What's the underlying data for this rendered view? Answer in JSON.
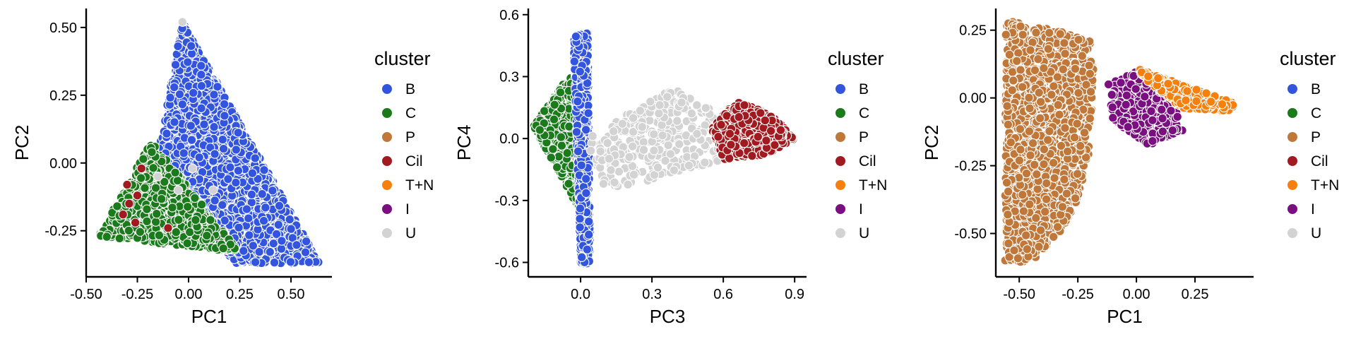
{
  "legend": {
    "title": "cluster",
    "entries": [
      {
        "label": "B",
        "color": "#3355DD"
      },
      {
        "label": "C",
        "color": "#1B7A1B"
      },
      {
        "label": "P",
        "color": "#C0783A"
      },
      {
        "label": "Cil",
        "color": "#A01A1F"
      },
      {
        "label": "T+N",
        "color": "#F5800E"
      },
      {
        "label": "I",
        "color": "#7A0F7F"
      },
      {
        "label": "U",
        "color": "#D3D3D3"
      }
    ]
  },
  "chart_data": [
    {
      "type": "scatter",
      "xlabel": "PC1",
      "ylabel": "PC2",
      "xlim": [
        -0.5,
        0.7
      ],
      "ylim": [
        -0.42,
        0.57
      ],
      "xticks": [
        -0.5,
        -0.25,
        0.0,
        0.25,
        0.5
      ],
      "xtick_labels": [
        "-0.50",
        "-0.25",
        "0.00",
        "0.25",
        "0.50"
      ],
      "yticks": [
        -0.25,
        0.0,
        0.25,
        0.5
      ],
      "ytick_labels": [
        "-0.25",
        "0.00",
        "0.25",
        "0.50"
      ],
      "series": [
        {
          "name": "B",
          "region": [
            [
              -0.03,
              0.52
            ],
            [
              0.64,
              -0.37
            ],
            [
              0.22,
              -0.37
            ],
            [
              -0.15,
              0.03
            ]
          ],
          "n": 2400,
          "count_visible": "dense"
        },
        {
          "name": "C",
          "region": [
            [
              -0.44,
              -0.27
            ],
            [
              -0.18,
              0.08
            ],
            [
              0.25,
              -0.33
            ]
          ],
          "n": 900
        },
        {
          "name": "U",
          "points": [
            [
              -0.03,
              0.52
            ],
            [
              0.02,
              -0.02
            ],
            [
              -0.05,
              -0.1
            ],
            [
              0.12,
              -0.1
            ],
            [
              -0.15,
              -0.05
            ]
          ]
        },
        {
          "name": "Cil",
          "points": [
            [
              -0.32,
              -0.19
            ],
            [
              -0.29,
              -0.15
            ],
            [
              -0.26,
              -0.22
            ],
            [
              -0.23,
              -0.02
            ],
            [
              -0.3,
              -0.08
            ],
            [
              -0.1,
              -0.24
            ],
            [
              -0.25,
              -0.12
            ]
          ]
        }
      ],
      "legend_position": "right"
    },
    {
      "type": "scatter",
      "xlabel": "PC3",
      "ylabel": "PC4",
      "xlim": [
        -0.22,
        0.95
      ],
      "ylim": [
        -0.67,
        0.63
      ],
      "xticks": [
        0.0,
        0.3,
        0.6,
        0.9
      ],
      "xtick_labels": [
        "0.0",
        "0.3",
        "0.6",
        "0.9"
      ],
      "yticks": [
        -0.6,
        -0.3,
        0.0,
        0.3,
        0.6
      ],
      "ytick_labels": [
        "-0.6",
        "-0.3",
        "0.0",
        "0.3",
        "0.6"
      ],
      "series": [
        {
          "name": "C",
          "region": [
            [
              -0.2,
              0.06
            ],
            [
              -0.05,
              0.3
            ],
            [
              0.03,
              0.3
            ],
            [
              0.01,
              -0.38
            ],
            [
              -0.05,
              -0.25
            ]
          ],
          "n": 700
        },
        {
          "name": "B",
          "region": [
            [
              -0.03,
              0.5
            ],
            [
              0.03,
              0.52
            ],
            [
              0.04,
              -0.6
            ],
            [
              0.0,
              -0.62
            ]
          ],
          "n": 900
        },
        {
          "name": "U",
          "region": [
            [
              0.02,
              0.0
            ],
            [
              0.4,
              0.25
            ],
            [
              0.6,
              0.1
            ],
            [
              0.6,
              -0.1
            ],
            [
              0.25,
              -0.22
            ],
            [
              0.1,
              -0.25
            ]
          ],
          "n": 320
        },
        {
          "name": "Cil",
          "region": [
            [
              0.55,
              0.05
            ],
            [
              0.65,
              0.18
            ],
            [
              0.8,
              0.12
            ],
            [
              0.9,
              0.0
            ],
            [
              0.78,
              -0.08
            ],
            [
              0.6,
              -0.1
            ]
          ],
          "n": 600
        }
      ],
      "legend_position": "right"
    },
    {
      "type": "scatter",
      "xlabel": "PC1",
      "ylabel": "PC2",
      "xlim": [
        -0.6,
        0.5
      ],
      "ylim": [
        -0.66,
        0.33
      ],
      "xticks": [
        -0.5,
        -0.25,
        0.0,
        0.25
      ],
      "xtick_labels": [
        "-0.50",
        "-0.25",
        "0.00",
        "0.25"
      ],
      "yticks": [
        -0.5,
        -0.25,
        0.0,
        0.25
      ],
      "ytick_labels": [
        "-0.50",
        "-0.25",
        "0.00",
        "0.25"
      ],
      "series": [
        {
          "name": "P",
          "region": [
            [
              -0.56,
              0.29
            ],
            [
              -0.2,
              0.22
            ],
            [
              -0.18,
              0.08
            ],
            [
              -0.2,
              -0.22
            ],
            [
              -0.28,
              -0.45
            ],
            [
              -0.45,
              -0.62
            ],
            [
              -0.56,
              -0.6
            ]
          ],
          "n": 1400
        },
        {
          "name": "I",
          "region": [
            [
              -0.12,
              0.05
            ],
            [
              0.0,
              0.1
            ],
            [
              0.15,
              0.02
            ],
            [
              0.2,
              -0.12
            ],
            [
              0.05,
              -0.18
            ],
            [
              -0.1,
              -0.08
            ]
          ],
          "n": 260
        },
        {
          "name": "T+N",
          "region": [
            [
              0.0,
              0.11
            ],
            [
              0.42,
              -0.02
            ],
            [
              0.4,
              -0.05
            ],
            [
              0.2,
              -0.04
            ],
            [
              0.05,
              0.06
            ]
          ],
          "n": 320
        }
      ],
      "legend_position": "right"
    }
  ]
}
